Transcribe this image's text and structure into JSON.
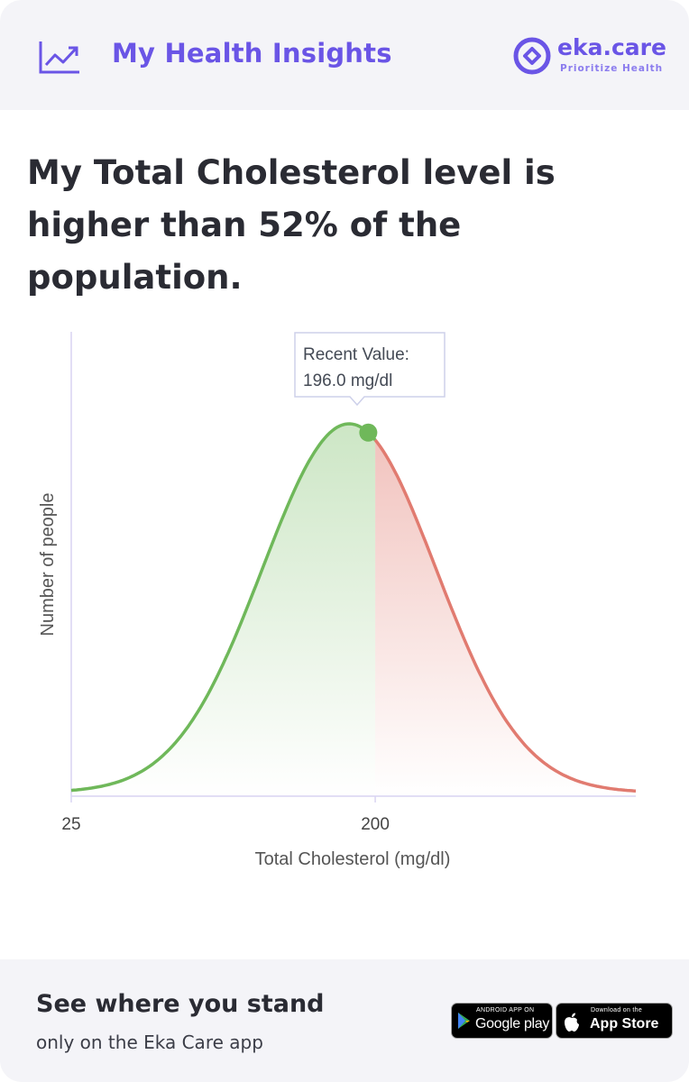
{
  "header": {
    "title": "My Health Insights",
    "brand_name": "eka.care",
    "brand_tagline": "Prioritize Health",
    "icon": "trend-up-icon"
  },
  "headline": "My Total Cholesterol level is higher than 52% of the population.",
  "chart_data": {
    "type": "area",
    "title": "",
    "xlabel": "Total Cholesterol (mg/dl)",
    "ylabel": "Number of people",
    "x_ticks": [
      25,
      200
    ],
    "xlim": [
      25,
      350
    ],
    "distribution": {
      "shape": "normal",
      "peak_x": 185,
      "std_dev": 50
    },
    "marker": {
      "x": 196.0,
      "label_line1": "Recent Value:",
      "label_line2": "196.0 mg/dl"
    },
    "split_x": 200,
    "percentile_below": 52,
    "colors": {
      "below": "#6fb85a",
      "above": "#e17b70",
      "fill_below": "#cfe6c5",
      "fill_above": "#f3c3c0",
      "axis": "#d4cfee"
    }
  },
  "footer": {
    "cta": "See where you stand",
    "sub": "only on the Eka Care app",
    "google_small": "ANDROID APP ON",
    "google_big": "Google play",
    "apple_small": "Download on the",
    "apple_big": "App Store"
  }
}
